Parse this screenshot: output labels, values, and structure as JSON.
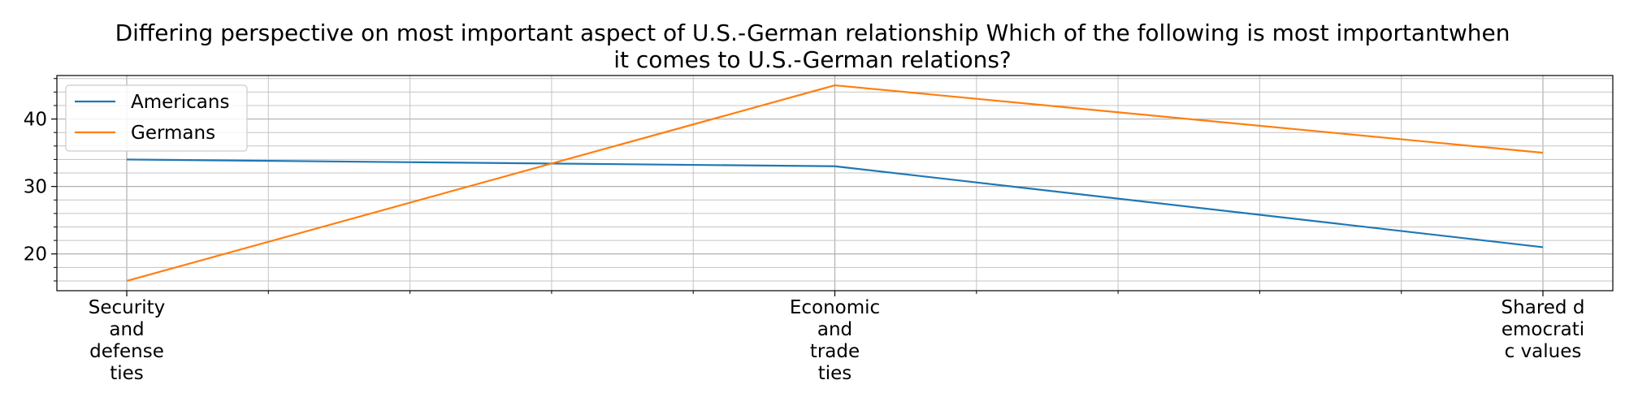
{
  "chart_data": {
    "type": "line",
    "title_lines": [
      "Differing perspective on most important aspect of U.S.-German relationship Which of the following is most importantwhen",
      "it comes to U.S.-German relations?"
    ],
    "xlabel": "",
    "ylabel": "",
    "categories": [
      [
        "Security",
        "and",
        "defense",
        "ties"
      ],
      [
        "Economic",
        "and",
        "trade",
        "ties"
      ],
      [
        "Shared d",
        "emocrati",
        "c values"
      ]
    ],
    "series": [
      {
        "name": "Americans",
        "color": "#1f77b4",
        "values": [
          34,
          33,
          21
        ]
      },
      {
        "name": "Germans",
        "color": "#ff7f0e",
        "values": [
          16,
          45,
          35
        ]
      }
    ],
    "ylim": [
      14.55,
      46.45
    ],
    "yticks": [
      20,
      30,
      40
    ],
    "yminor_step": 2,
    "xminor_divisions": 5,
    "grid": true,
    "legend_position": "upper left"
  }
}
